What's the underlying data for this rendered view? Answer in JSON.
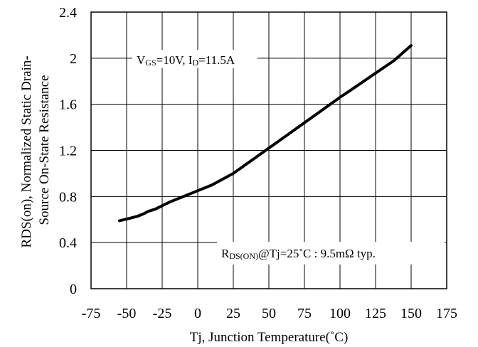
{
  "chart_data": {
    "type": "line",
    "xlabel": "Tj, Junction Temperature(˚C)",
    "ylabel_line1": "RDS(on), Normalized Static Drain-",
    "ylabel_line2": "Source On-State Resistance",
    "xlim": [
      -75,
      175
    ],
    "ylim": [
      0,
      2.4
    ],
    "x_ticks": [
      -75,
      -50,
      -25,
      0,
      25,
      50,
      75,
      100,
      125,
      150,
      175
    ],
    "x_tick_labels": [
      "-75",
      "-50",
      "-25",
      "0",
      "25",
      "50",
      "75",
      "100",
      "125",
      "150",
      "175"
    ],
    "y_ticks": [
      0,
      0.4,
      0.8,
      1.2,
      1.6,
      2.0,
      2.4
    ],
    "y_tick_labels": [
      "0",
      "0.4",
      "0.8",
      "1.2",
      "1.6",
      "2",
      "2.4"
    ],
    "grid": true,
    "series": [
      {
        "x": [
          -55,
          -48,
          -42,
          -38,
          -35,
          -30,
          -25,
          -20,
          -10,
          0,
          10,
          25,
          50,
          75,
          100,
          112,
          125,
          138,
          150
        ],
        "y": [
          0.59,
          0.61,
          0.63,
          0.65,
          0.67,
          0.69,
          0.72,
          0.75,
          0.8,
          0.85,
          0.9,
          1.0,
          1.22,
          1.44,
          1.66,
          1.76,
          1.87,
          1.98,
          2.11
        ]
      }
    ],
    "annotations": {
      "conditions": {
        "v_prefix": "V",
        "v_sub": "GS",
        "v_rest": "=10V, I",
        "i_sub": "D",
        "i_rest": "=11.5A"
      },
      "rds": {
        "prefix": "R",
        "sub": "DS(ON)",
        "rest": "@Tj=25˚C : 9.5mΩ typ."
      }
    }
  }
}
